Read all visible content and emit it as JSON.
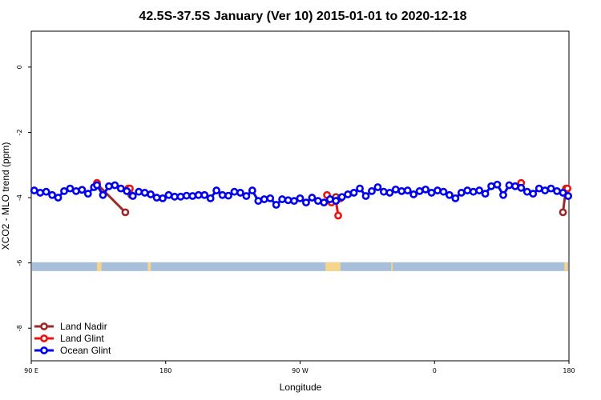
{
  "chart_data": {
    "type": "line",
    "title": "42.5S-37.5S January (Ver 10)   2015-01-01 to 2020-12-18",
    "xlabel": "Longitude",
    "ylabel": "XCO2 - MLO trend (ppm)",
    "xlim": [
      90,
      450
    ],
    "ylim": [
      -9,
      1.1
    ],
    "xticks": [
      {
        "value": 90,
        "label": "90 E"
      },
      {
        "value": 180,
        "label": "180"
      },
      {
        "value": 270,
        "label": "90 W"
      },
      {
        "value": 360,
        "label": "0"
      },
      {
        "value": 450,
        "label": "180"
      }
    ],
    "yticks": [
      {
        "value": 0,
        "label": "0"
      },
      {
        "value": -2,
        "label": "-2"
      },
      {
        "value": -4,
        "label": "-4"
      },
      {
        "value": -6,
        "label": "-6"
      },
      {
        "value": -8,
        "label": "-8"
      }
    ],
    "surface_band": {
      "y_range": [
        -6.25,
        -5.98
      ],
      "ocean_color": "#a8bfdc",
      "land_color": "#f5d58a",
      "land_segments": [
        [
          134,
          137
        ],
        [
          168,
          170
        ],
        [
          287,
          297
        ],
        [
          331,
          332
        ],
        [
          447,
          449
        ]
      ]
    },
    "legend": [
      {
        "name": "Land Nadir",
        "color": "#9b2a2a"
      },
      {
        "name": "Land Glint",
        "color": "#ee1111"
      },
      {
        "name": "Ocean Glint",
        "color": "#0000ee"
      }
    ],
    "series": [
      {
        "name": "Land Nadir",
        "color": "#9b2a2a",
        "segments": [
          {
            "x": [
              134,
              153
            ],
            "y": [
              -3.58,
              -4.45
            ]
          },
          {
            "x": [
              155,
              157
            ],
            "y": [
              -3.72,
              -3.92
            ]
          },
          {
            "x": [
              294,
              297
            ],
            "y": [
              -3.98,
              -4.02
            ]
          },
          {
            "x": [
              446,
              448,
              449.5
            ],
            "y": [
              -4.45,
              -3.72,
              -3.95
            ]
          }
        ]
      },
      {
        "name": "Land Glint",
        "color": "#ee1111",
        "segments": [
          {
            "x": [
              134
            ],
            "y": [
              -3.55
            ]
          },
          {
            "x": [
              156
            ],
            "y": [
              -3.72
            ]
          },
          {
            "x": [
              288,
              291,
              294,
              295.5
            ],
            "y": [
              -3.92,
              -4.15,
              -4.1,
              -4.55
            ]
          },
          {
            "x": [
              418
            ],
            "y": [
              -3.55
            ]
          },
          {
            "x": [
              449
            ],
            "y": [
              -3.72
            ]
          }
        ]
      },
      {
        "name": "Ocean Glint",
        "color": "#0000ee",
        "x": [
          92,
          96,
          100,
          104,
          108,
          112,
          116,
          120,
          124,
          128,
          132,
          134,
          138,
          142,
          146,
          150,
          154,
          158,
          162,
          166,
          170,
          174,
          178,
          182,
          186,
          190,
          194,
          198,
          202,
          206,
          210,
          214,
          218,
          222,
          226,
          230,
          234,
          238,
          242,
          246,
          250,
          254,
          258,
          262,
          266,
          270,
          274,
          278,
          282,
          286,
          290,
          294,
          298,
          302,
          306,
          310,
          314,
          318,
          322,
          326,
          330,
          334,
          338,
          342,
          346,
          350,
          354,
          358,
          362,
          366,
          370,
          374,
          378,
          382,
          386,
          390,
          394,
          398,
          402,
          406,
          410,
          414,
          418,
          422,
          426,
          430,
          434,
          438,
          442,
          446,
          449.5
        ],
        "y": [
          -3.78,
          -3.85,
          -3.82,
          -3.92,
          -4.0,
          -3.8,
          -3.72,
          -3.8,
          -3.76,
          -3.88,
          -3.68,
          -3.62,
          -3.92,
          -3.65,
          -3.62,
          -3.72,
          -3.8,
          -3.95,
          -3.82,
          -3.85,
          -3.9,
          -4.0,
          -4.02,
          -3.92,
          -3.97,
          -3.97,
          -3.94,
          -3.95,
          -3.92,
          -3.92,
          -4.02,
          -3.78,
          -3.92,
          -3.94,
          -3.82,
          -3.85,
          -3.95,
          -3.78,
          -4.1,
          -4.05,
          -4.02,
          -4.22,
          -4.05,
          -4.08,
          -4.1,
          -4.02,
          -4.15,
          -4.0,
          -4.1,
          -4.15,
          -4.05,
          -4.1,
          -3.98,
          -3.9,
          -3.85,
          -3.72,
          -3.95,
          -3.8,
          -3.68,
          -3.82,
          -3.85,
          -3.75,
          -3.8,
          -3.78,
          -3.9,
          -3.8,
          -3.75,
          -3.85,
          -3.78,
          -3.82,
          -3.92,
          -4.02,
          -3.85,
          -3.78,
          -3.82,
          -3.78,
          -3.88,
          -3.65,
          -3.6,
          -3.92,
          -3.62,
          -3.65,
          -3.7,
          -3.82,
          -3.88,
          -3.72,
          -3.78,
          -3.72,
          -3.8,
          -3.85,
          -3.95
        ]
      }
    ]
  }
}
